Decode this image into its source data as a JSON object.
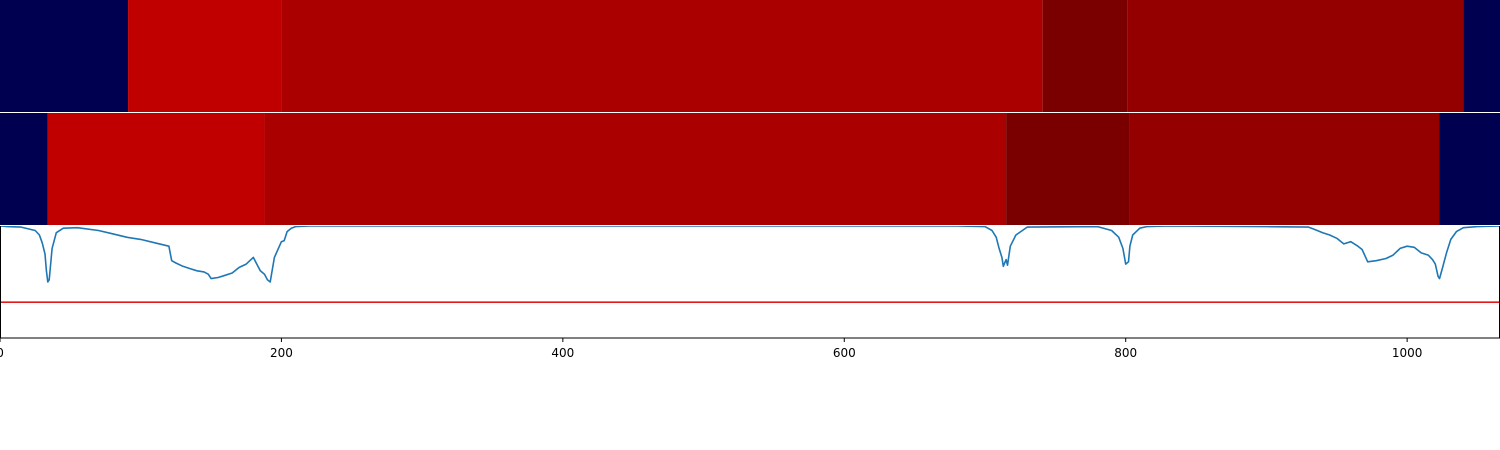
{
  "chart_data": [
    {
      "type": "heatmap",
      "colors": {
        "background": "#000050",
        "level_1": "#c00000",
        "level_2": "#aa0000",
        "level_3": "#7a0000",
        "level_4": "#940000"
      },
      "segments": [
        {
          "start": 0,
          "end": 91,
          "level": 0
        },
        {
          "start": 91,
          "end": 200,
          "level": 1
        },
        {
          "start": 200,
          "end": 741,
          "level": 2
        },
        {
          "start": 741,
          "end": 801,
          "level": 3
        },
        {
          "start": 801,
          "end": 1040,
          "level": 4
        },
        {
          "start": 1040,
          "end": 1066,
          "level": 0
        }
      ]
    },
    {
      "type": "heatmap",
      "colors": {
        "background": "#000050",
        "level_1": "#c00000",
        "level_2": "#aa0000",
        "level_3": "#7a0000",
        "level_4": "#940000"
      },
      "segments": [
        {
          "start": 0,
          "end": 34,
          "level": 0
        },
        {
          "start": 34,
          "end": 188,
          "level": 1
        },
        {
          "start": 188,
          "end": 715,
          "level": 2
        },
        {
          "start": 715,
          "end": 803,
          "level": 3
        },
        {
          "start": 803,
          "end": 1023,
          "level": 4
        },
        {
          "start": 1023,
          "end": 1066,
          "level": 0
        }
      ]
    },
    {
      "type": "line",
      "xlim": [
        0,
        1066
      ],
      "ylim": [
        0,
        1
      ],
      "x_ticks": [
        0,
        200,
        400,
        600,
        800,
        1000
      ],
      "series": [
        {
          "color": "#1f77b4",
          "x": [
            0,
            5,
            15,
            25,
            28,
            30,
            32,
            33,
            34,
            35,
            37,
            40,
            45,
            55,
            70,
            80,
            90,
            100,
            110,
            120,
            122,
            125,
            130,
            135,
            140,
            145,
            148,
            150,
            155,
            160,
            165,
            170,
            175,
            180,
            185,
            188,
            190,
            192,
            195,
            200,
            202,
            204,
            207,
            210,
            220,
            240,
            300,
            500,
            600,
            680,
            700,
            705,
            708,
            710,
            712,
            713,
            715,
            716,
            718,
            722,
            730,
            780,
            790,
            795,
            798,
            800,
            802,
            803,
            805,
            810,
            815,
            830,
            900,
            930,
            935,
            940,
            945,
            950,
            955,
            960,
            965,
            968,
            972,
            978,
            985,
            990,
            995,
            1000,
            1005,
            1008,
            1010,
            1015,
            1018,
            1020,
            1022,
            1023,
            1025,
            1028,
            1031,
            1035,
            1040,
            1050,
            1066
          ],
          "y": [
            1.0,
            0.995,
            0.99,
            0.96,
            0.92,
            0.85,
            0.75,
            0.6,
            0.5,
            0.52,
            0.8,
            0.94,
            0.98,
            0.985,
            0.96,
            0.93,
            0.9,
            0.88,
            0.85,
            0.82,
            0.69,
            0.67,
            0.64,
            0.62,
            0.6,
            0.59,
            0.57,
            0.53,
            0.54,
            0.56,
            0.58,
            0.63,
            0.66,
            0.72,
            0.6,
            0.57,
            0.52,
            0.5,
            0.72,
            0.86,
            0.87,
            0.95,
            0.98,
            0.995,
            1.0,
            1.0,
            1.0,
            1.0,
            1.0,
            1.0,
            0.995,
            0.96,
            0.9,
            0.8,
            0.72,
            0.64,
            0.7,
            0.65,
            0.82,
            0.92,
            0.99,
            0.995,
            0.96,
            0.9,
            0.8,
            0.66,
            0.68,
            0.82,
            0.92,
            0.98,
            0.995,
            1.0,
            0.995,
            0.99,
            0.965,
            0.94,
            0.92,
            0.89,
            0.84,
            0.86,
            0.82,
            0.79,
            0.68,
            0.69,
            0.71,
            0.74,
            0.8,
            0.82,
            0.81,
            0.78,
            0.76,
            0.74,
            0.7,
            0.66,
            0.55,
            0.53,
            0.62,
            0.76,
            0.88,
            0.95,
            0.985,
            0.995,
            1.0
          ]
        },
        {
          "color": "#e31a1c",
          "x": [
            0,
            1066
          ],
          "y": [
            0.32,
            0.32
          ]
        }
      ]
    }
  ]
}
